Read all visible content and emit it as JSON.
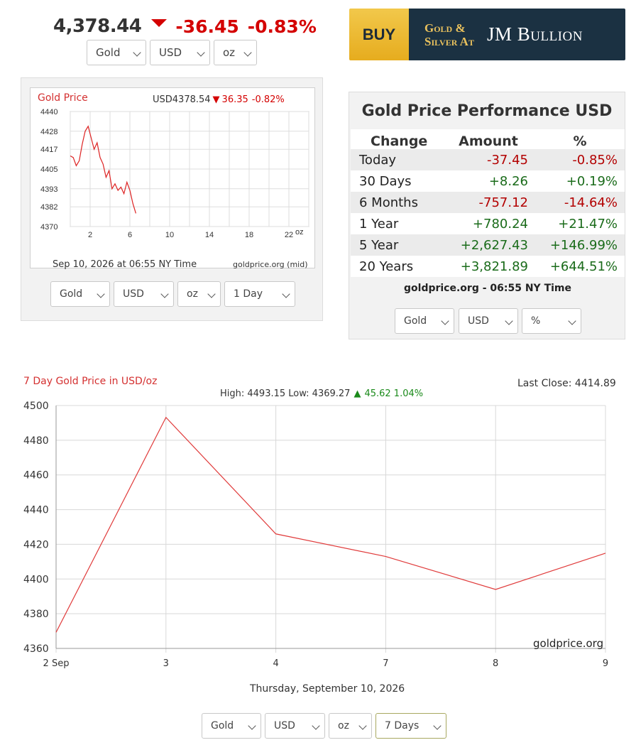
{
  "header": {
    "price": "4,378.44",
    "change": "-36.45",
    "change_pct": "-0.83%",
    "selectors": [
      "Gold",
      "USD",
      "oz"
    ]
  },
  "banner": {
    "buy_label": "BUY",
    "line1": "Gold &",
    "line2": "Silver At",
    "brand": "JM Bullion"
  },
  "mini_chart": {
    "title": "Gold Price",
    "quote_prefix": "USD4378.54",
    "quote_change": "36.35",
    "quote_pct": "-0.82%",
    "unit_label": "oz",
    "timestamp": "Sep 10, 2026 at 06:55 NY Time",
    "source": "goldprice.org (mid)",
    "y_ticks": [
      "4440",
      "4428",
      "4417",
      "4405",
      "4393",
      "4382",
      "4370"
    ],
    "x_ticks": [
      "2",
      "6",
      "10",
      "14",
      "18",
      "22"
    ],
    "selectors": [
      "Gold",
      "USD",
      "oz",
      "1 Day"
    ]
  },
  "performance": {
    "title": "Gold Price Performance USD",
    "headers": [
      "Change",
      "Amount",
      "%"
    ],
    "rows": [
      {
        "period": "Today",
        "amount": "-37.45",
        "pct": "-0.85%"
      },
      {
        "period": "30 Days",
        "amount": "+8.26",
        "pct": "+0.19%"
      },
      {
        "period": "6 Months",
        "amount": "-757.12",
        "pct": "-14.64%"
      },
      {
        "period": "1 Year",
        "amount": "+780.24",
        "pct": "+21.47%"
      },
      {
        "period": "5 Year",
        "amount": "+2,627.43",
        "pct": "+146.99%"
      },
      {
        "period": "20 Years",
        "amount": "+3,821.89",
        "pct": "+644.51%"
      }
    ],
    "footer": "goldprice.org - 06:55 NY Time",
    "selectors": [
      "Gold",
      "USD",
      "%"
    ]
  },
  "big_chart": {
    "title": "7 Day Gold Price in USD/oz",
    "last_close": "Last Close: 4414.89",
    "stats_prefix": "High: 4493.15 Low: 4369.27",
    "stats_change": "45.62 1.04%",
    "watermark": "goldprice.org",
    "date_label": "Thursday, September 10, 2026",
    "selectors": [
      "Gold",
      "USD",
      "oz",
      "7 Days"
    ]
  },
  "chart_data": [
    {
      "type": "line",
      "title": "Gold Price",
      "x": [
        0.0,
        0.3,
        0.6,
        0.9,
        1.2,
        1.5,
        1.8,
        2.1,
        2.4,
        2.7,
        3.0,
        3.3,
        3.6,
        3.9,
        4.2,
        4.5,
        4.8,
        5.1,
        5.4,
        5.7,
        6.0,
        6.3,
        6.6
      ],
      "values": [
        4413,
        4412,
        4407,
        4410,
        4420,
        4428,
        4431,
        4424,
        4417,
        4421,
        4412,
        4408,
        4400,
        4404,
        4393,
        4396,
        4392,
        4394,
        4390,
        4397,
        4392,
        4384,
        4378
      ],
      "ylim": [
        4370,
        4440
      ],
      "xlim": [
        0,
        24
      ]
    },
    {
      "type": "line",
      "title": "7 Day Gold Price in USD/oz",
      "categories": [
        "2 Sep",
        "3",
        "4",
        "7",
        "8",
        "9"
      ],
      "values": [
        4369.27,
        4493.15,
        4426,
        4413,
        4394,
        4414.89
      ],
      "ylim": [
        4360,
        4500
      ],
      "y_ticks": [
        4360,
        4380,
        4400,
        4420,
        4440,
        4460,
        4480,
        4500
      ],
      "grid": true
    }
  ]
}
